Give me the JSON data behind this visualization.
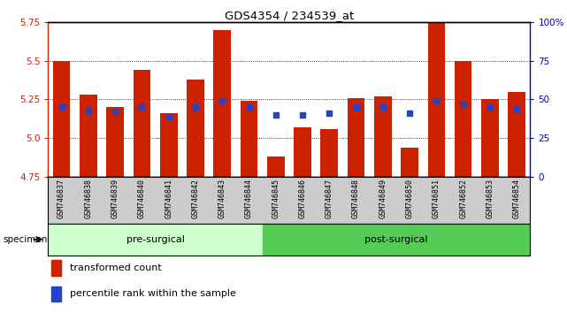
{
  "title": "GDS4354 / 234539_at",
  "samples": [
    "GSM746837",
    "GSM746838",
    "GSM746839",
    "GSM746840",
    "GSM746841",
    "GSM746842",
    "GSM746843",
    "GSM746844",
    "GSM746845",
    "GSM746846",
    "GSM746847",
    "GSM746848",
    "GSM746849",
    "GSM746850",
    "GSM746851",
    "GSM746852",
    "GSM746853",
    "GSM746854"
  ],
  "bar_values": [
    5.5,
    5.28,
    5.2,
    5.44,
    5.16,
    5.38,
    5.7,
    5.24,
    4.88,
    5.07,
    5.06,
    5.26,
    5.27,
    4.94,
    5.75,
    5.5,
    5.25,
    5.3
  ],
  "dot_values": [
    5.2,
    5.18,
    5.17,
    5.2,
    5.14,
    5.2,
    5.24,
    5.2,
    5.15,
    5.15,
    5.16,
    5.2,
    5.2,
    5.16,
    5.24,
    5.22,
    5.2,
    5.19
  ],
  "pre_surgical_count": 8,
  "ymin": 4.75,
  "ymax": 5.75,
  "bar_color": "#cc2200",
  "dot_color": "#2244cc",
  "pre_color": "#ccffcc",
  "post_color": "#55cc55",
  "bg_color": "#ffffff",
  "label_bg": "#cccccc",
  "xlabel_color": "#cc2200",
  "right_axis_color": "#0000cc",
  "yticks": [
    4.75,
    5.0,
    5.25,
    5.5,
    5.75
  ],
  "right_yticks": [
    0,
    25,
    50,
    75,
    100
  ],
  "right_yticklabels": [
    "0",
    "25",
    "50",
    "75",
    "100%"
  ],
  "grid_at": [
    5.0,
    5.25,
    5.5
  ]
}
